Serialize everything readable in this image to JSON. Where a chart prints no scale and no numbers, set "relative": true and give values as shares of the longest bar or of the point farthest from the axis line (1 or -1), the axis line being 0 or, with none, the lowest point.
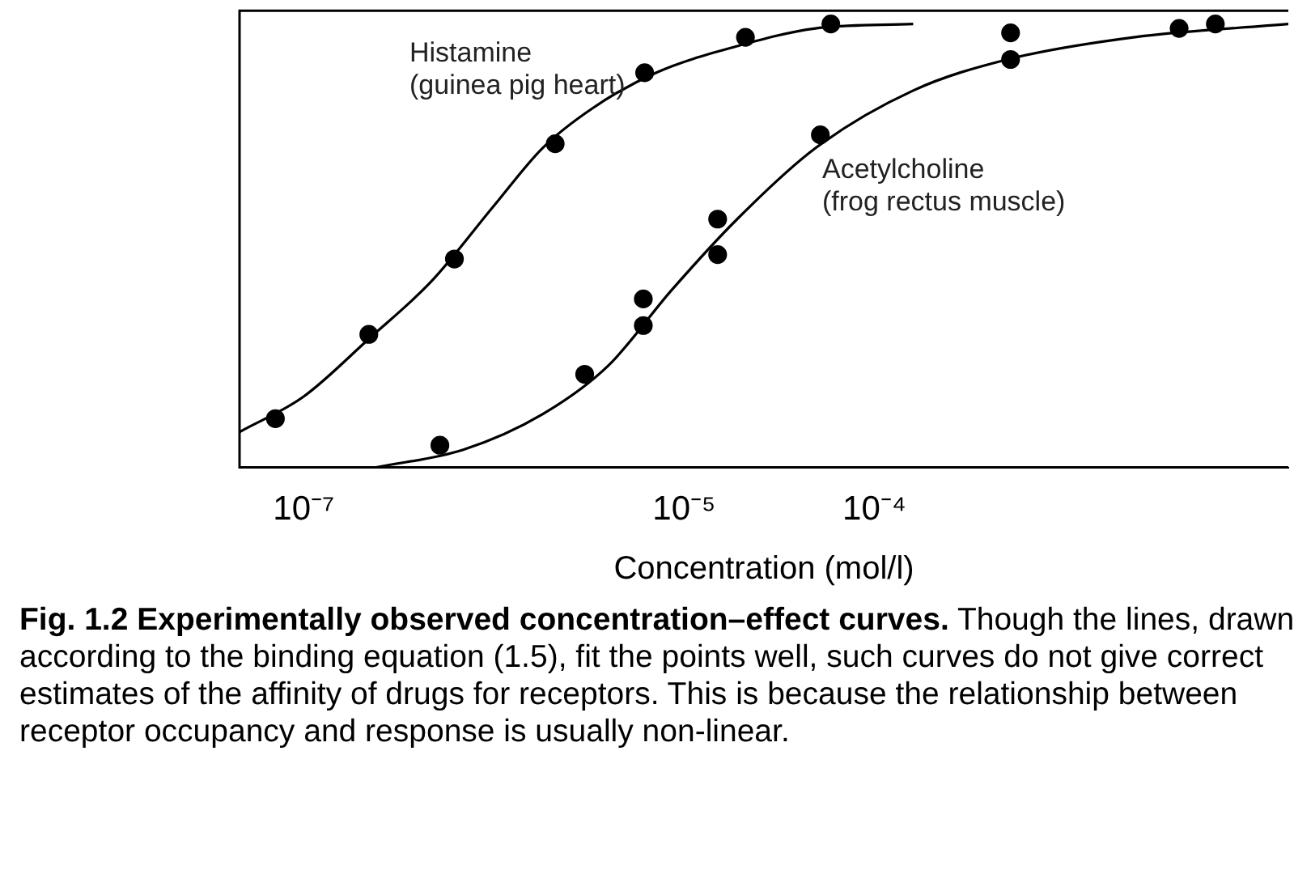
{
  "chart_data": {
    "type": "line",
    "title": "Fig. 1.2    Experimentally observed concentration–effect curves.",
    "annotations": [
      "Though the lines, drawn according to the binding equation (1.5), fit the points well, such curves do not give correct estimates of the affinity of drugs for receptors. This is because the relationship between receptor occupancy and response is usually non-linear."
    ],
    "xlabel": "Concentration (mol/l)",
    "relative": true,
    "log": "x",
    "grid": false,
    "legend": false,
    "tick_labels": "x",
    "xlim": [
      4.6e-08,
      0.015
    ],
    "xticks": [
      {
        "value": 1e-07,
        "label": "10⁻⁷"
      },
      {
        "value": 1e-05,
        "label": "10⁻⁵"
      },
      {
        "value": 0.0001,
        "label": "10⁻⁴"
      }
    ],
    "series": [
      {
        "name": "Histamine (guinea pig heart)",
        "type": "line",
        "color": "#000000",
        "marker": "none",
        "x": [
          4.6e-08,
          1e-07,
          2.2e-07,
          4.7e-07,
          1e-06,
          1.8e-06,
          3.3e-06,
          7.1e-06,
          1.9e-05,
          4.9e-05,
          0.00016
        ],
        "values": [
          0.08,
          0.16,
          0.29,
          0.42,
          0.59,
          0.72,
          0.81,
          0.89,
          0.95,
          0.99,
          1.0
        ]
      },
      {
        "type": "scatter",
        "color": "#000000",
        "marker": "circle",
        "x": [
          7.1e-08,
          2.2e-07,
          6.2e-07,
          2.1e-06,
          6.2e-06,
          2.1e-05,
          5.9e-05,
          0.00052,
          0.0062
        ],
        "values": [
          0.11,
          0.3,
          0.47,
          0.73,
          0.89,
          0.97,
          1.0,
          0.98,
          1.0
        ]
      },
      {
        "name": "Acetylcholine (frog rectus muscle)",
        "type": "line",
        "color": "#000000",
        "marker": "none",
        "x": [
          2.4e-07,
          6.9e-07,
          1.8e-06,
          4e-06,
          8.6e-06,
          1.9e-05,
          4.9e-05,
          0.00016,
          0.0005,
          0.0023,
          0.015
        ],
        "values": [
          0,
          0.04,
          0.12,
          0.23,
          0.4,
          0.56,
          0.72,
          0.85,
          0.92,
          0.97,
          1.0
        ]
      },
      {
        "type": "scatter",
        "color": "#000000",
        "marker": "circle",
        "x": [
          5.2e-07,
          3e-06,
          6.1e-06,
          6.1e-06,
          1.5e-05,
          1.5e-05,
          5.2e-05,
          0.00052,
          0.004
        ],
        "values": [
          0.05,
          0.21,
          0.32,
          0.38,
          0.48,
          0.56,
          0.75,
          0.92,
          0.99
        ]
      }
    ]
  }
}
